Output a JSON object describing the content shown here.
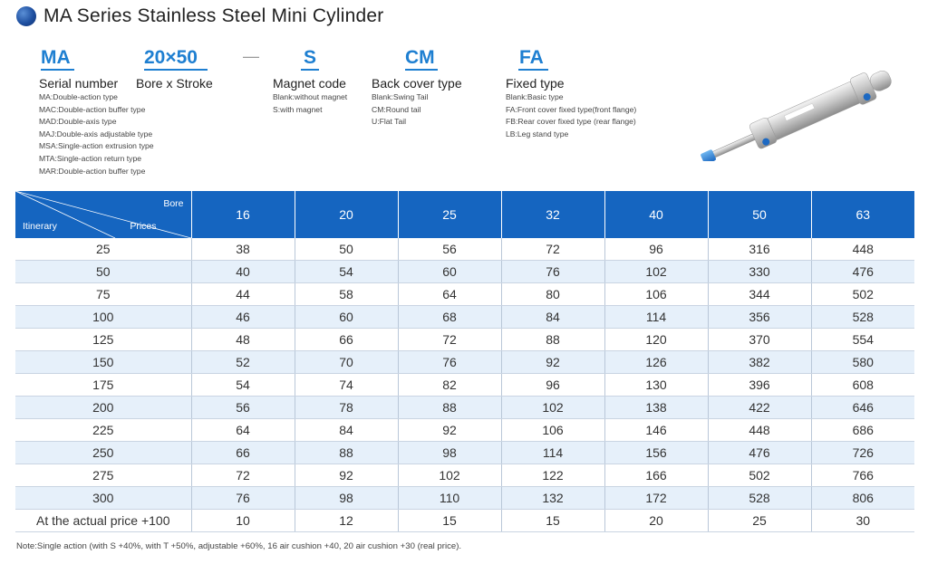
{
  "title": "MA Series Stainless Steel Mini Cylinder",
  "codes": {
    "serial": "MA",
    "bore_stroke": "20×50",
    "dash": "—",
    "magnet": "S",
    "back_cover": "CM",
    "fixed": "FA"
  },
  "headings": {
    "serial": "Serial number",
    "bore_stroke": "Bore x Stroke",
    "magnet": "Magnet code",
    "back_cover": "Back cover type",
    "fixed": "Fixed type"
  },
  "serial_types": [
    "MA:Double-action type",
    "MAC:Double-action buffer type",
    "MAD:Double-axis type",
    "MAJ:Double-axis adjustable type",
    "MSA:Single-action extrusion type",
    "MTA:Single-action return type",
    "MAR:Double-action buffer type"
  ],
  "magnet_types": [
    "Blank:without magnet",
    "S:with magnet"
  ],
  "back_cover_types": [
    "Blank:Swing Tail",
    "CM:Round tail",
    "U:Flat Tail"
  ],
  "fixed_types": [
    "Blank:Basic type",
    "FA:Front cover fixed type(front flange)",
    "FB:Rear cover fixed type (rear flange)",
    "LB:Leg stand type"
  ],
  "table": {
    "corner": {
      "bore": "Bore",
      "prices": "Prices",
      "itinerary": "Itinerary"
    },
    "bores": [
      "16",
      "20",
      "25",
      "32",
      "40",
      "50",
      "63"
    ],
    "rows": [
      {
        "stroke": "25",
        "prices": [
          "38",
          "50",
          "56",
          "72",
          "96",
          "316",
          "448"
        ]
      },
      {
        "stroke": "50",
        "prices": [
          "40",
          "54",
          "60",
          "76",
          "102",
          "330",
          "476"
        ]
      },
      {
        "stroke": "75",
        "prices": [
          "44",
          "58",
          "64",
          "80",
          "106",
          "344",
          "502"
        ]
      },
      {
        "stroke": "100",
        "prices": [
          "46",
          "60",
          "68",
          "84",
          "114",
          "356",
          "528"
        ]
      },
      {
        "stroke": "125",
        "prices": [
          "48",
          "66",
          "72",
          "88",
          "120",
          "370",
          "554"
        ]
      },
      {
        "stroke": "150",
        "prices": [
          "52",
          "70",
          "76",
          "92",
          "126",
          "382",
          "580"
        ]
      },
      {
        "stroke": "175",
        "prices": [
          "54",
          "74",
          "82",
          "96",
          "130",
          "396",
          "608"
        ]
      },
      {
        "stroke": "200",
        "prices": [
          "56",
          "78",
          "88",
          "102",
          "138",
          "422",
          "646"
        ]
      },
      {
        "stroke": "225",
        "prices": [
          "64",
          "84",
          "92",
          "106",
          "146",
          "448",
          "686"
        ]
      },
      {
        "stroke": "250",
        "prices": [
          "66",
          "88",
          "98",
          "114",
          "156",
          "476",
          "726"
        ]
      },
      {
        "stroke": "275",
        "prices": [
          "72",
          "92",
          "102",
          "122",
          "166",
          "502",
          "766"
        ]
      },
      {
        "stroke": "300",
        "prices": [
          "76",
          "98",
          "110",
          "132",
          "172",
          "528",
          "806"
        ]
      },
      {
        "stroke": "At the actual price +100",
        "prices": [
          "10",
          "12",
          "15",
          "15",
          "20",
          "25",
          "30"
        ]
      }
    ]
  },
  "note": "Note:Single action (with S +40%, with T +50%, adjustable +60%, 16 air cushion +40, 20 air cushion +30 (real price).",
  "product_image": "stainless-steel-mini-cylinder",
  "colors": {
    "header_blue": "#1565c0",
    "code_blue": "#1e7fd1",
    "row_alt": "#e6f0fa"
  }
}
